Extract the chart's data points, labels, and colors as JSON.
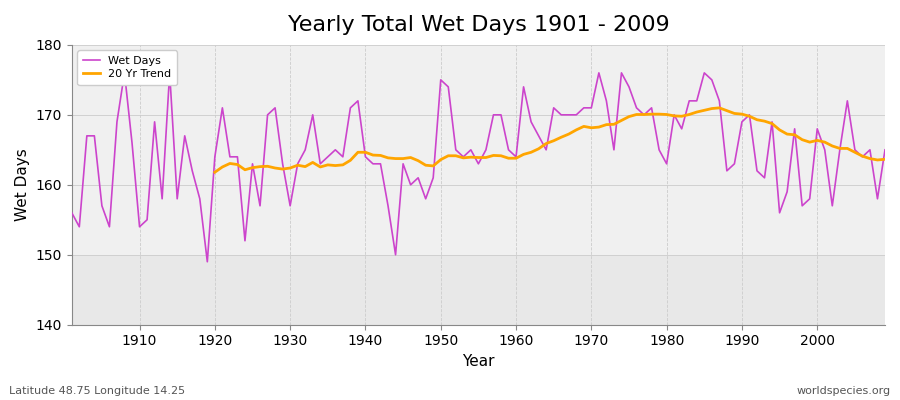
{
  "title": "Yearly Total Wet Days 1901 - 2009",
  "xlabel": "Year",
  "ylabel": "Wet Days",
  "bottom_left_label": "Latitude 48.75 Longitude 14.25",
  "bottom_right_label": "worldspecies.org",
  "ylim": [
    140,
    180
  ],
  "xlim": [
    1901,
    2009
  ],
  "line_color": "#cc44cc",
  "trend_color": "#ffa500",
  "background_color": "#ffffff",
  "plot_bg_color": "#e8e8e8",
  "plot_bg_upper_color": "#f0f0f0",
  "wet_days": [
    156,
    154,
    167,
    167,
    157,
    154,
    169,
    176,
    166,
    154,
    155,
    169,
    158,
    176,
    158,
    167,
    162,
    158,
    149,
    164,
    171,
    164,
    164,
    152,
    163,
    157,
    170,
    171,
    163,
    157,
    163,
    165,
    170,
    163,
    164,
    165,
    164,
    171,
    172,
    164,
    163,
    163,
    157,
    150,
    163,
    160,
    161,
    158,
    161,
    175,
    174,
    165,
    164,
    165,
    163,
    165,
    170,
    170,
    165,
    164,
    174,
    169,
    167,
    165,
    171,
    170,
    170,
    170,
    171,
    171,
    176,
    172,
    165,
    176,
    174,
    171,
    170,
    171,
    165,
    163,
    170,
    168,
    172,
    172,
    176,
    175,
    172,
    162,
    163,
    169,
    170,
    162,
    161,
    169,
    156,
    159,
    168,
    157,
    158,
    168,
    165,
    157,
    165,
    172,
    165,
    164,
    165,
    158,
    165
  ],
  "years": [
    1901,
    1902,
    1903,
    1904,
    1905,
    1906,
    1907,
    1908,
    1909,
    1910,
    1911,
    1912,
    1913,
    1914,
    1915,
    1916,
    1917,
    1918,
    1919,
    1920,
    1921,
    1922,
    1923,
    1924,
    1925,
    1926,
    1927,
    1928,
    1929,
    1930,
    1931,
    1932,
    1933,
    1934,
    1935,
    1936,
    1937,
    1938,
    1939,
    1940,
    1941,
    1942,
    1943,
    1944,
    1945,
    1946,
    1947,
    1948,
    1949,
    1950,
    1951,
    1952,
    1953,
    1954,
    1955,
    1956,
    1957,
    1958,
    1959,
    1960,
    1961,
    1962,
    1963,
    1964,
    1965,
    1966,
    1967,
    1968,
    1969,
    1970,
    1971,
    1972,
    1973,
    1974,
    1975,
    1976,
    1977,
    1978,
    1979,
    1980,
    1981,
    1982,
    1983,
    1984,
    1985,
    1986,
    1987,
    1988,
    1989,
    1990,
    1991,
    1992,
    1993,
    1994,
    1995,
    1996,
    1997,
    1998,
    1999,
    2000,
    2001,
    2002,
    2003,
    2004,
    2005,
    2006,
    2007,
    2008,
    2009
  ],
  "legend_wet_label": "Wet Days",
  "legend_trend_label": "20 Yr Trend",
  "title_fontsize": 16,
  "axis_label_fontsize": 11,
  "tick_label_fontsize": 10,
  "small_label_fontsize": 8,
  "trend_window": 20
}
